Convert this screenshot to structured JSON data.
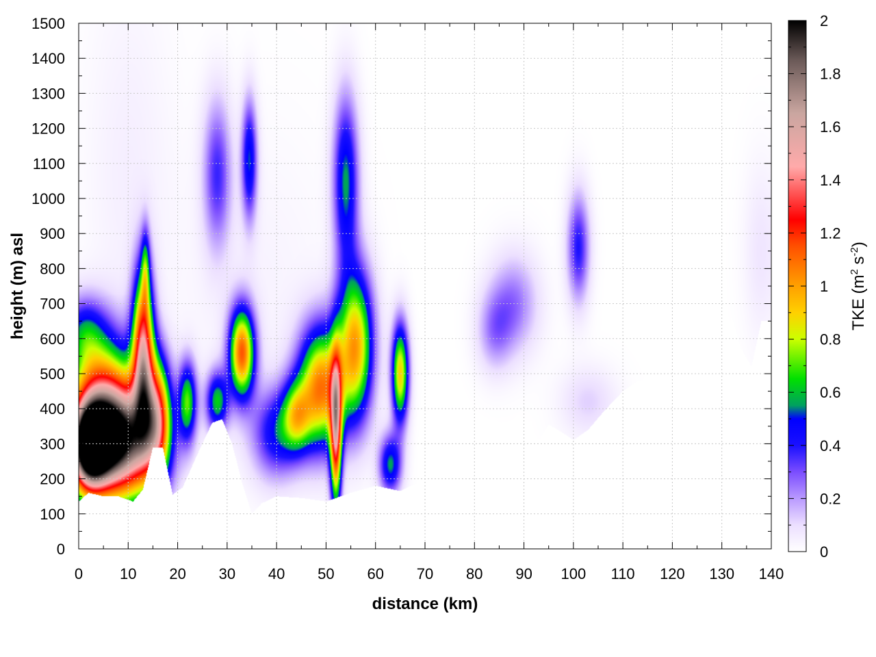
{
  "chart_data": {
    "type": "heatmap",
    "title": "",
    "xlabel": "distance (km)",
    "ylabel": "height (m) asl",
    "colorbar_label": "TKE (m",
    "colorbar_unit_sup1": "2",
    "colorbar_unit_mid": " s",
    "colorbar_unit_sup2": "-2",
    "colorbar_unit_end": ")",
    "xlim": [
      0,
      140
    ],
    "ylim": [
      0,
      1500
    ],
    "zlim": [
      0,
      2
    ],
    "x_ticks": [
      "0",
      "10",
      "20",
      "30",
      "40",
      "50",
      "60",
      "70",
      "80",
      "90",
      "100",
      "110",
      "120",
      "130",
      "140"
    ],
    "y_ticks": [
      "0",
      "100",
      "200",
      "300",
      "400",
      "500",
      "600",
      "700",
      "800",
      "900",
      "1000",
      "1100",
      "1200",
      "1300",
      "1400",
      "1500"
    ],
    "z_ticks": [
      "0",
      "0.2",
      "0.4",
      "0.6",
      "0.8",
      "1",
      "1.2",
      "1.4",
      "1.6",
      "1.8",
      "2"
    ],
    "grid": true,
    "colormap": [
      {
        "v": 0.0,
        "c": "#ffffff"
      },
      {
        "v": 0.1,
        "c": "#ecdfff"
      },
      {
        "v": 0.2,
        "c": "#b99aff"
      },
      {
        "v": 0.3,
        "c": "#7b4dff"
      },
      {
        "v": 0.4,
        "c": "#1a10ff"
      },
      {
        "v": 0.5,
        "c": "#0000ff"
      },
      {
        "v": 0.55,
        "c": "#00a060"
      },
      {
        "v": 0.65,
        "c": "#00e000"
      },
      {
        "v": 0.8,
        "c": "#ccff00"
      },
      {
        "v": 0.9,
        "c": "#ffd000"
      },
      {
        "v": 1.0,
        "c": "#ffa000"
      },
      {
        "v": 1.15,
        "c": "#ff5000"
      },
      {
        "v": 1.25,
        "c": "#ff0000"
      },
      {
        "v": 1.45,
        "c": "#ffaaaa"
      },
      {
        "v": 1.65,
        "c": "#caa6a0"
      },
      {
        "v": 1.85,
        "c": "#6b5a58"
      },
      {
        "v": 2.0,
        "c": "#000000"
      }
    ],
    "terrain": [
      [
        0,
        135
      ],
      [
        2,
        160
      ],
      [
        5,
        150
      ],
      [
        8,
        150
      ],
      [
        11,
        135
      ],
      [
        13,
        170
      ],
      [
        15,
        290
      ],
      [
        17,
        290
      ],
      [
        19,
        155
      ],
      [
        21,
        175
      ],
      [
        24,
        270
      ],
      [
        27,
        360
      ],
      [
        29,
        370
      ],
      [
        31,
        300
      ],
      [
        33,
        190
      ],
      [
        35,
        100
      ],
      [
        37,
        130
      ],
      [
        40,
        150
      ],
      [
        45,
        145
      ],
      [
        50,
        135
      ],
      [
        55,
        160
      ],
      [
        60,
        180
      ],
      [
        65,
        165
      ],
      [
        70,
        200
      ],
      [
        75,
        205
      ],
      [
        80,
        225
      ],
      [
        85,
        240
      ],
      [
        88,
        250
      ],
      [
        92,
        290
      ],
      [
        95,
        355
      ],
      [
        98,
        330
      ],
      [
        100,
        310
      ],
      [
        103,
        340
      ],
      [
        106,
        390
      ],
      [
        110,
        450
      ],
      [
        113,
        480
      ],
      [
        116,
        490
      ],
      [
        118,
        450
      ],
      [
        121,
        400
      ],
      [
        125,
        460
      ],
      [
        127,
        520
      ],
      [
        130,
        560
      ],
      [
        132,
        670
      ],
      [
        134,
        570
      ],
      [
        136,
        520
      ],
      [
        138,
        650
      ],
      [
        140,
        650
      ]
    ],
    "blobs": [
      {
        "x": 8,
        "y": 310,
        "sx": 5.5,
        "sy": 120,
        "v": 2.0
      },
      {
        "x": 2,
        "y": 290,
        "sx": 2.8,
        "sy": 90,
        "v": 1.6
      },
      {
        "x": 4,
        "y": 480,
        "sx": 4.5,
        "sy": 120,
        "v": 0.6
      },
      {
        "x": 1,
        "y": 620,
        "sx": 3,
        "sy": 70,
        "v": 0.35
      },
      {
        "x": 13,
        "y": 560,
        "sx": 1.5,
        "sy": 160,
        "v": 1.3
      },
      {
        "x": 13.5,
        "y": 800,
        "sx": 0.6,
        "sy": 80,
        "v": 0.4
      },
      {
        "x": 16,
        "y": 380,
        "sx": 1.8,
        "sy": 120,
        "v": 0.9
      },
      {
        "x": 22,
        "y": 420,
        "sx": 1.3,
        "sy": 80,
        "v": 0.65
      },
      {
        "x": 28,
        "y": 420,
        "sx": 1.6,
        "sy": 60,
        "v": 0.6
      },
      {
        "x": 28,
        "y": 1070,
        "sx": 2,
        "sy": 150,
        "v": 0.35
      },
      {
        "x": 34.5,
        "y": 1110,
        "sx": 1.1,
        "sy": 120,
        "v": 0.5
      },
      {
        "x": 33,
        "y": 560,
        "sx": 1.8,
        "sy": 90,
        "v": 1.1
      },
      {
        "x": 40,
        "y": 330,
        "sx": 3.5,
        "sy": 90,
        "v": 0.45
      },
      {
        "x": 44,
        "y": 380,
        "sx": 2,
        "sy": 70,
        "v": 0.55
      },
      {
        "x": 49,
        "y": 460,
        "sx": 3.2,
        "sy": 120,
        "v": 1.05
      },
      {
        "x": 52,
        "y": 330,
        "sx": 0.8,
        "sy": 150,
        "v": 1.2
      },
      {
        "x": 56,
        "y": 580,
        "sx": 2.5,
        "sy": 150,
        "v": 0.95
      },
      {
        "x": 54,
        "y": 1050,
        "sx": 1.8,
        "sy": 170,
        "v": 0.55
      },
      {
        "x": 65,
        "y": 500,
        "sx": 1.2,
        "sy": 100,
        "v": 0.9
      },
      {
        "x": 63,
        "y": 240,
        "sx": 1.6,
        "sy": 60,
        "v": 0.55
      },
      {
        "x": 88,
        "y": 700,
        "sx": 3.5,
        "sy": 100,
        "v": 0.25
      },
      {
        "x": 84,
        "y": 620,
        "sx": 2.5,
        "sy": 80,
        "v": 0.2
      },
      {
        "x": 101,
        "y": 860,
        "sx": 1.6,
        "sy": 110,
        "v": 0.4
      },
      {
        "x": 103,
        "y": 420,
        "sx": 4,
        "sy": 70,
        "v": 0.12
      },
      {
        "x": 138,
        "y": 850,
        "sx": 2.5,
        "sy": 180,
        "v": 0.08
      },
      {
        "x": 10,
        "y": 1100,
        "sx": 6,
        "sy": 400,
        "v": 0.05
      },
      {
        "x": 35,
        "y": 700,
        "sx": 12,
        "sy": 350,
        "v": 0.04
      }
    ]
  }
}
